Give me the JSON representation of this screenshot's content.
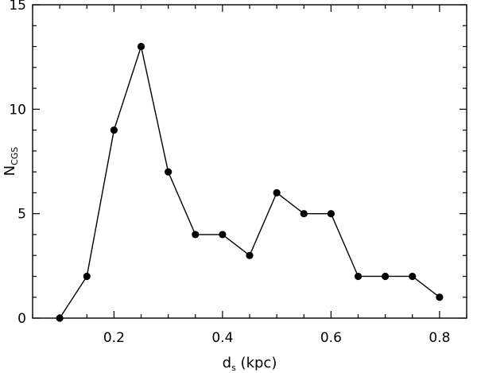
{
  "chart_data": {
    "type": "line",
    "xlabel_main": "d",
    "xlabel_sub": "s",
    "xlabel_unit": " (kpc)",
    "ylabel_main": "N",
    "ylabel_sub": "CGS",
    "x": [
      0.1,
      0.15,
      0.2,
      0.25,
      0.3,
      0.35,
      0.4,
      0.45,
      0.5,
      0.55,
      0.6,
      0.65,
      0.7,
      0.75,
      0.8
    ],
    "values": [
      0,
      2,
      9,
      13,
      7,
      4,
      4,
      3,
      6,
      5,
      5,
      2,
      2,
      2,
      1
    ],
    "xlim": [
      0.05,
      0.85
    ],
    "ylim": [
      0,
      15
    ],
    "xticks": [
      0.2,
      0.4,
      0.6,
      0.8
    ],
    "xtick_labels": [
      "0.2",
      "0.4",
      "0.6",
      "0.8"
    ],
    "xminor_step": 0.05,
    "yticks": [
      0,
      5,
      10,
      15
    ],
    "ytick_labels": [
      "0",
      "5",
      "10",
      "15"
    ],
    "yminor_step": 1,
    "grid": false,
    "marker": "filled-circle",
    "line_color": "#000000"
  }
}
